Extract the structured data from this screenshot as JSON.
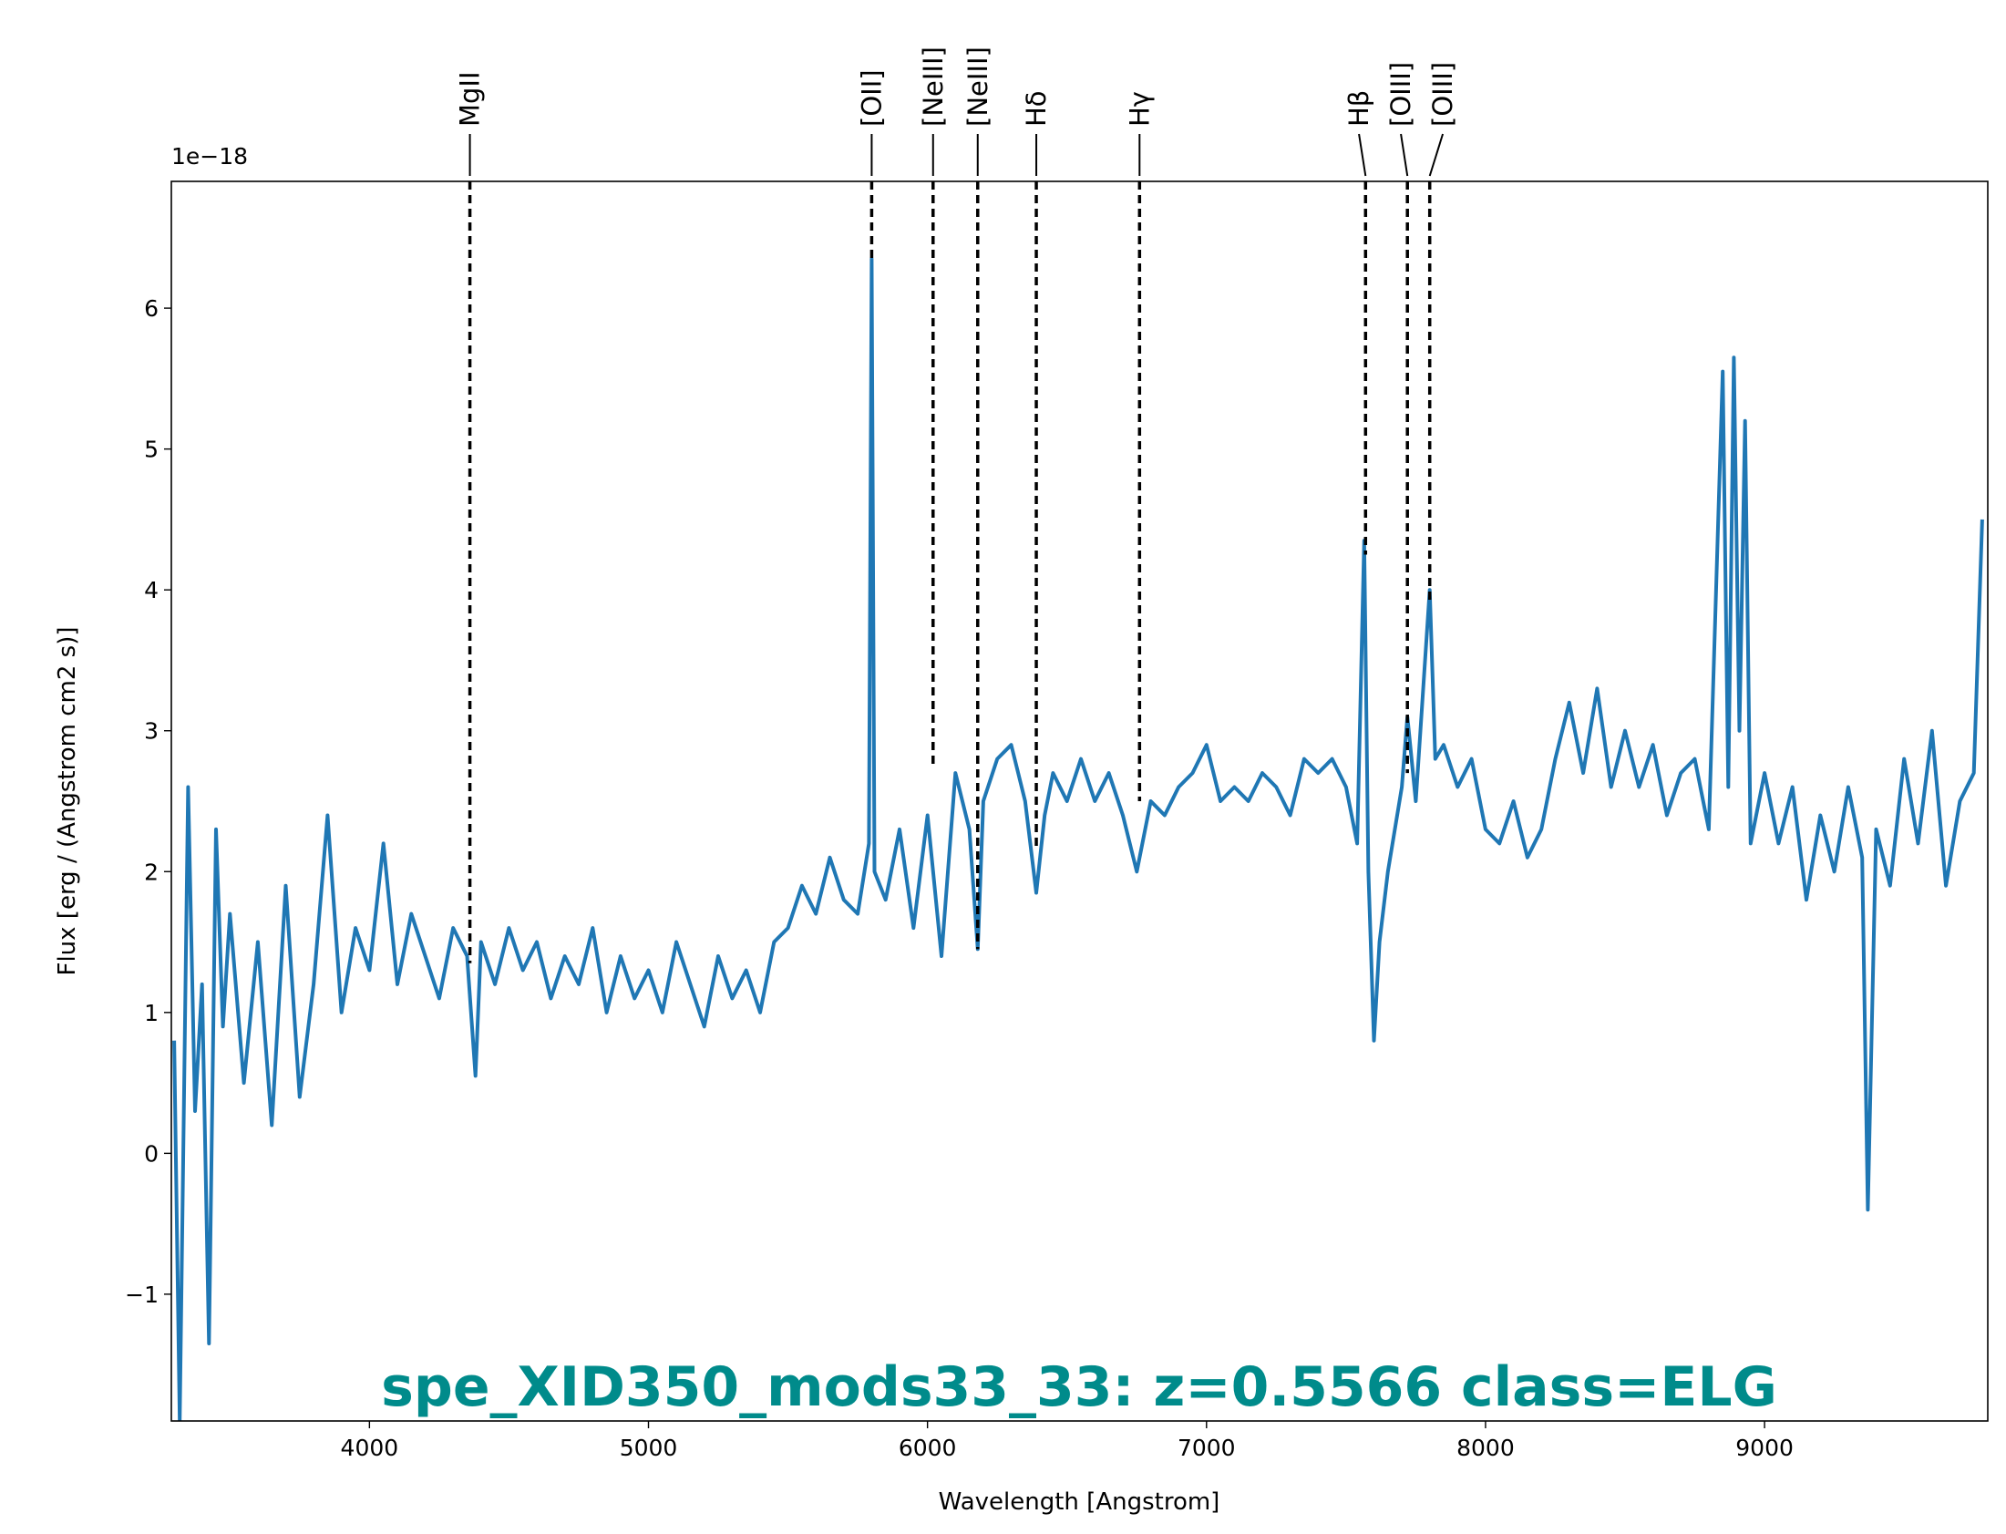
{
  "chart_data": {
    "type": "line",
    "title": "spe_XID350_mods33_33: z=0.5566 class=ELG",
    "title_color": "#008b8b",
    "xlabel": "Wavelength [Angstrom]",
    "ylabel": "Flux [erg / (Angstrom cm2 s)]",
    "y_offset_label": "1e−18",
    "color": "#1f77b4",
    "xlim": [
      3290,
      9800
    ],
    "ylim": [
      -1.9,
      6.9
    ],
    "xticks": [
      4000,
      5000,
      6000,
      7000,
      8000,
      9000
    ],
    "yticks": [
      {
        "value": -1,
        "label": "−1"
      },
      0,
      1,
      2,
      3,
      4,
      5,
      6
    ],
    "x": [
      3300,
      3320,
      3350,
      3375,
      3400,
      3425,
      3450,
      3475,
      3500,
      3550,
      3600,
      3650,
      3700,
      3750,
      3800,
      3850,
      3900,
      3950,
      4000,
      4050,
      4100,
      4150,
      4200,
      4250,
      4300,
      4350,
      4380,
      4400,
      4450,
      4500,
      4550,
      4600,
      4650,
      4700,
      4750,
      4800,
      4850,
      4900,
      4950,
      5000,
      5050,
      5100,
      5150,
      5200,
      5250,
      5300,
      5350,
      5400,
      5450,
      5500,
      5550,
      5600,
      5650,
      5700,
      5750,
      5790,
      5800,
      5810,
      5850,
      5900,
      5950,
      6000,
      6050,
      6100,
      6150,
      6180,
      6200,
      6250,
      6300,
      6350,
      6390,
      6420,
      6450,
      6500,
      6550,
      6600,
      6650,
      6700,
      6750,
      6800,
      6850,
      6900,
      6950,
      7000,
      7050,
      7100,
      7150,
      7200,
      7250,
      7300,
      7350,
      7400,
      7450,
      7500,
      7540,
      7565,
      7580,
      7600,
      7620,
      7650,
      7700,
      7720,
      7750,
      7800,
      7820,
      7850,
      7900,
      7950,
      8000,
      8050,
      8100,
      8150,
      8200,
      8250,
      8300,
      8350,
      8400,
      8450,
      8500,
      8550,
      8600,
      8650,
      8700,
      8750,
      8800,
      8850,
      8870,
      8890,
      8910,
      8930,
      8950,
      9000,
      9050,
      9100,
      9150,
      9200,
      9250,
      9300,
      9350,
      9370,
      9400,
      9450,
      9500,
      9550,
      9600,
      9650,
      9700,
      9750,
      9780
    ],
    "values": [
      0.8,
      -1.9,
      2.6,
      0.3,
      1.2,
      -1.35,
      2.3,
      0.9,
      1.7,
      0.5,
      1.5,
      0.2,
      1.9,
      0.4,
      1.2,
      2.4,
      1.0,
      1.6,
      1.3,
      2.2,
      1.2,
      1.7,
      1.4,
      1.1,
      1.6,
      1.4,
      0.55,
      1.5,
      1.2,
      1.6,
      1.3,
      1.5,
      1.1,
      1.4,
      1.2,
      1.6,
      1.0,
      1.4,
      1.1,
      1.3,
      1.0,
      1.5,
      1.2,
      0.9,
      1.4,
      1.1,
      1.3,
      1.0,
      1.5,
      1.6,
      1.9,
      1.7,
      2.1,
      1.8,
      1.7,
      2.2,
      6.35,
      2.0,
      1.8,
      2.3,
      1.6,
      2.4,
      1.4,
      2.7,
      2.3,
      1.45,
      2.5,
      2.8,
      2.9,
      2.5,
      1.85,
      2.4,
      2.7,
      2.5,
      2.8,
      2.5,
      2.7,
      2.4,
      2.0,
      2.5,
      2.4,
      2.6,
      2.7,
      2.9,
      2.5,
      2.6,
      2.5,
      2.7,
      2.6,
      2.4,
      2.8,
      2.7,
      2.8,
      2.6,
      2.2,
      4.35,
      2.0,
      0.8,
      1.5,
      2.0,
      2.6,
      3.1,
      2.5,
      4.0,
      2.8,
      2.9,
      2.6,
      2.8,
      2.3,
      2.2,
      2.5,
      2.1,
      2.3,
      2.8,
      3.2,
      2.7,
      3.3,
      2.6,
      3.0,
      2.6,
      2.9,
      2.4,
      2.7,
      2.8,
      2.3,
      5.55,
      2.6,
      5.65,
      3.0,
      5.2,
      2.2,
      2.7,
      2.2,
      2.6,
      1.8,
      2.4,
      2.0,
      2.6,
      2.1,
      -0.4,
      2.3,
      1.9,
      2.8,
      2.2,
      3.0,
      1.9,
      2.5,
      2.7,
      4.5
    ],
    "lines": [
      {
        "label": "MgII",
        "x": 4360,
        "y": 1.35
      },
      {
        "label": "[OII]",
        "x": 5800,
        "y": 6.35
      },
      {
        "label": "[NeIII]",
        "x": 6020,
        "y": 2.75
      },
      {
        "label": "[NeIII]",
        "x": 6180,
        "y": 1.45
      },
      {
        "label": "Hδ",
        "x": 6390,
        "y": 2.15
      },
      {
        "label": "Hγ",
        "x": 6760,
        "y": 2.5
      },
      {
        "label": "Hβ",
        "x": 7570,
        "y": 4.25
      },
      {
        "label": "[OIII]",
        "x": 7720,
        "y": 2.7
      },
      {
        "label": "[OIII]",
        "x": 7800,
        "y": 3.9
      }
    ]
  }
}
